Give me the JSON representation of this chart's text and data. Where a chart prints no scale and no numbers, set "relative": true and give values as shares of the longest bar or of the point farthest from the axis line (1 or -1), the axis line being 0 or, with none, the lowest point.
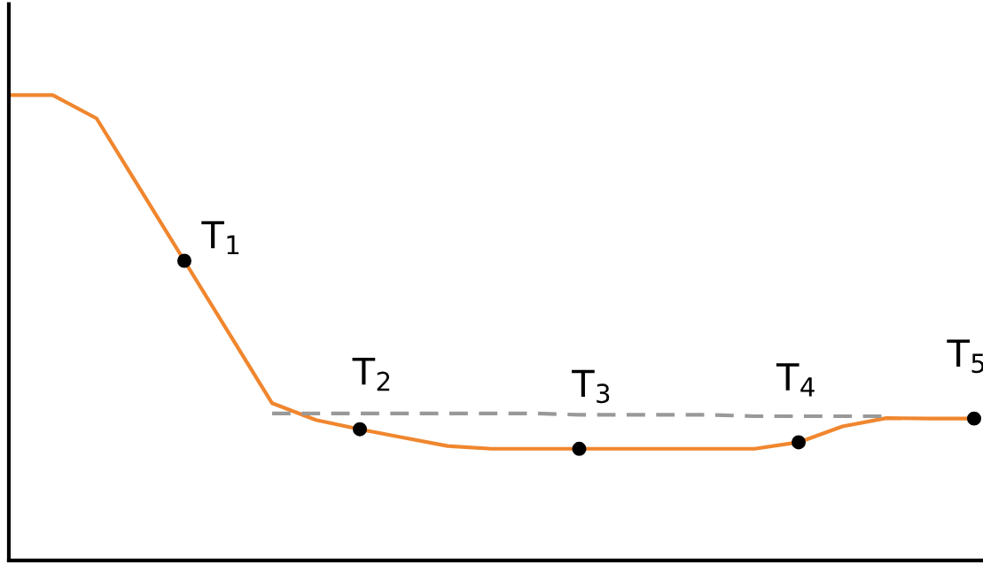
{
  "chart_data": {
    "type": "line",
    "relative": true,
    "tick_labels": false,
    "legend": false,
    "categories": [
      null,
      null,
      null,
      null,
      null,
      null,
      null,
      null,
      null,
      null,
      null,
      null,
      null,
      null,
      null,
      null,
      null,
      null,
      null,
      null,
      null,
      null,
      null
    ],
    "series": [
      {
        "color": "#f0862e",
        "line_style": "solid",
        "values": [
          1,
          1,
          0.95,
          0.797,
          0.644,
          0.491,
          0.338,
          0.302,
          0.282,
          0.264,
          0.246,
          0.24,
          0.24,
          0.24,
          0.24,
          0.24,
          0.24,
          0.24,
          0.254,
          0.288,
          0.306,
          0.305,
          0.305
        ]
      },
      {
        "color": "#999999",
        "line_style": "dashed",
        "values": [
          null,
          null,
          null,
          null,
          null,
          null,
          0.316,
          0.316,
          0.316,
          0.316,
          0.316,
          0.316,
          0.316,
          0.313,
          0.313,
          0.313,
          0.313,
          0.31,
          0.31,
          0.31,
          0.31,
          null,
          null
        ]
      }
    ],
    "annotations": [
      "T$_{1}$",
      "T$_{2}$",
      "T$_{3}$",
      "T$_{4}$",
      "T$_{5}$"
    ]
  }
}
